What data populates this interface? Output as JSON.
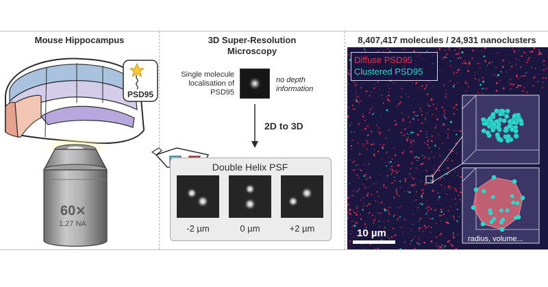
{
  "panel1": {
    "title": "Mouse Hippocampus",
    "protein_label": "PSD95",
    "objective_mag": "60",
    "objective_na": "1.27 NA"
  },
  "panel2": {
    "title_line1": "3D Super-Resolution",
    "title_line2": "Microscopy",
    "single_molecule_lines": [
      "Single molecule",
      "localisation of",
      "PSD95"
    ],
    "no_depth_lines": [
      "no depth",
      "information"
    ],
    "arrow_label": "2D to 3D",
    "psf_title": "Double Helix PSF",
    "depth_labels": [
      "-2 µm",
      "0 µm",
      "+2 µm"
    ]
  },
  "panel3": {
    "title": "8,407,417 molecules / 24,931 nanoclusters",
    "legend": [
      {
        "label": "Diffuse PSD95",
        "color": "#e8334e"
      },
      {
        "label": "Clustered PSD95",
        "color": "#2fd6cc"
      }
    ],
    "scale_bar": "10 µm",
    "inset_caption": "radius, volume..."
  },
  "colors": {
    "background_dark": "#1a1640",
    "diffuse": "#e8334e",
    "clustered": "#2fd6cc"
  }
}
